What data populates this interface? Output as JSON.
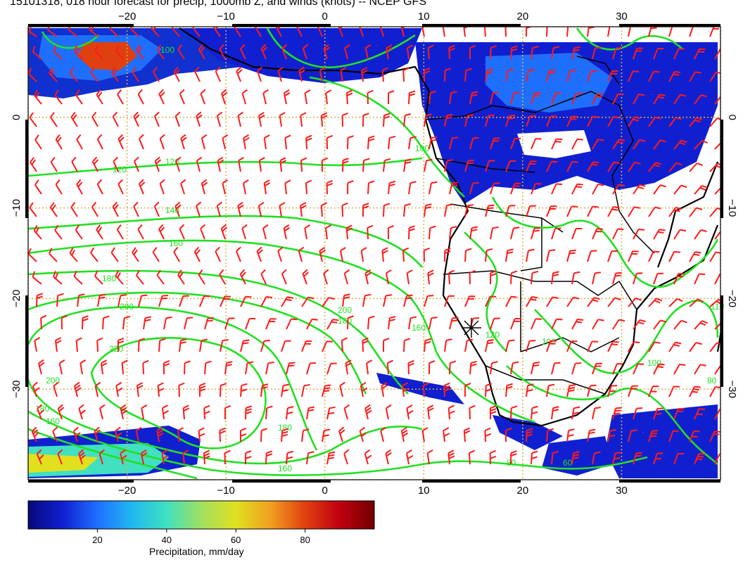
{
  "title": "15101318, 018 hour forecast for precip, 1000mb Z, and winds (knots) -- NCEP GFS",
  "map": {
    "lon_range": [
      -30,
      40
    ],
    "lat_range": [
      -40,
      10
    ],
    "lon_ticks": [
      "−20",
      "−10",
      "0",
      "10",
      "20",
      "30"
    ],
    "lat_ticks": [
      "0",
      "−10",
      "−20",
      "−30"
    ],
    "contour_color": "#22e022",
    "barb_color": "#ff1a1a",
    "coast_color": "#000000",
    "grid_color": "#d9b04a",
    "contour_labels": [
      "100",
      "120",
      "120",
      "140",
      "160",
      "180",
      "200",
      "220",
      "200",
      "180",
      "160",
      "180",
      "160",
      "200",
      "180",
      "160",
      "100",
      "120",
      "100",
      "110",
      "100",
      "80",
      "80",
      "60"
    ]
  },
  "colorbar": {
    "ticks": [
      "20",
      "40",
      "60",
      "80"
    ],
    "title": "Precipitation, mm/day",
    "colors": [
      "#08087a",
      "#1020d0",
      "#1f6fff",
      "#20b8f0",
      "#40e0c0",
      "#a0e060",
      "#e0e020",
      "#f0a020",
      "#e04010",
      "#c00010",
      "#700000"
    ]
  }
}
